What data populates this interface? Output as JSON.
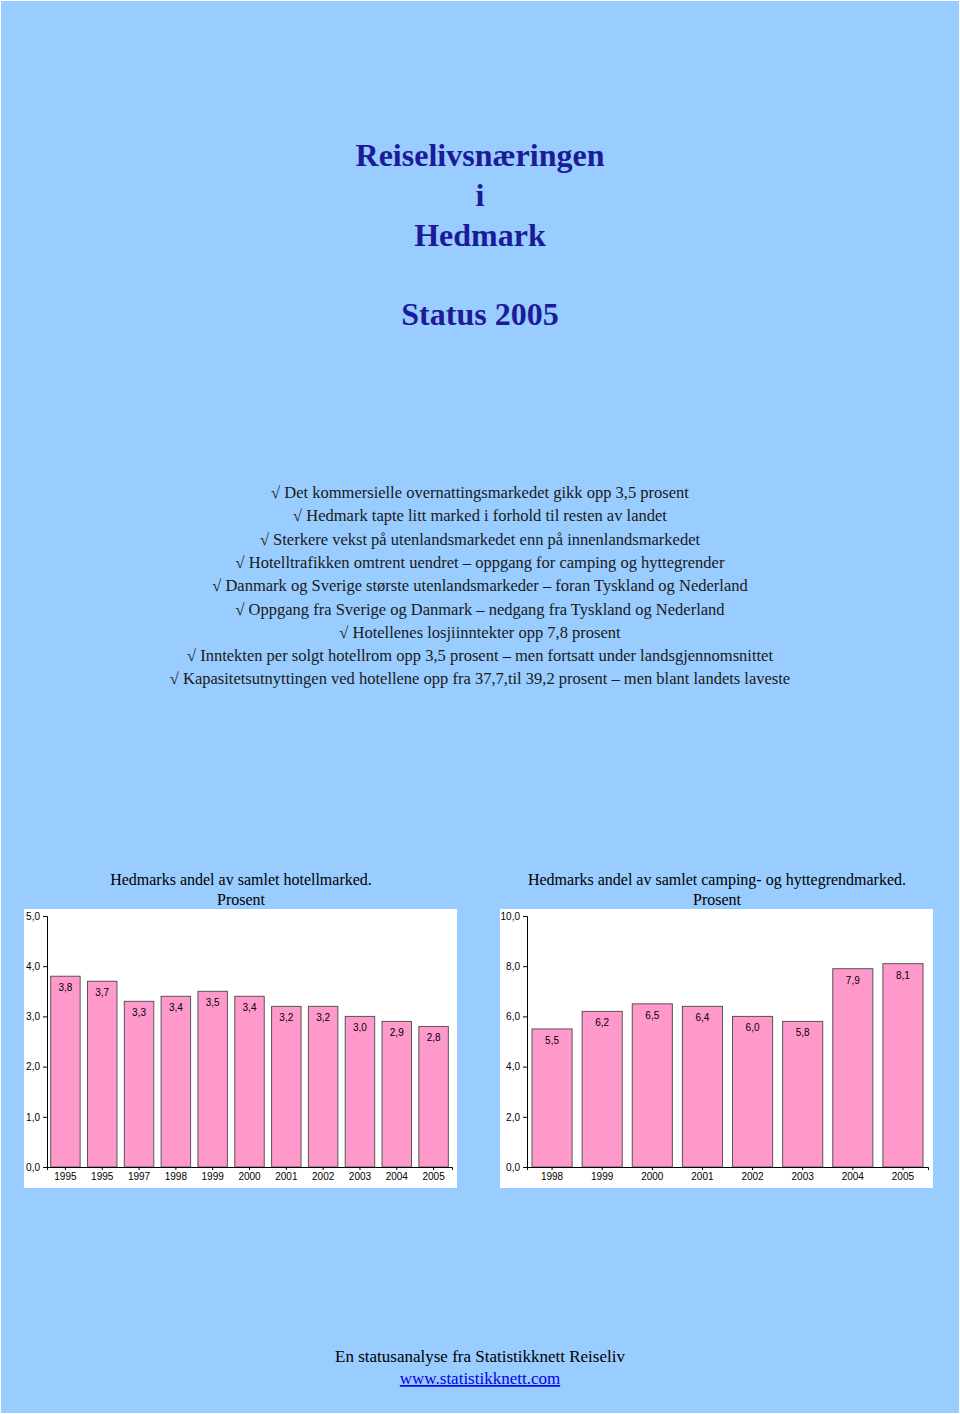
{
  "header": {
    "title_lines": [
      "Reiselivsnæringen",
      "i",
      "Hedmark"
    ],
    "subtitle": "Status 2005"
  },
  "bullets": [
    "√ Det kommersielle overnattingsmarkedet gikk opp 3,5 prosent",
    "√ Hedmark tapte litt marked i forhold til resten av landet",
    "√ Sterkere vekst på utenlandsmarkedet enn på innenlandsmarkedet",
    "√ Hotelltrafikken omtrent uendret – oppgang for camping og hyttegrender",
    "√ Danmark og Sverige største utenlandsmarkeder – foran Tyskland og Nederland",
    "√ Oppgang fra Sverige og Danmark – nedgang fra Tyskland og Nederland",
    "√ Hotellenes losjiinntekter opp 7,8 prosent",
    "√ Inntekten per solgt hotellrom opp 3,5 prosent – men fortsatt under landsgjennomsnittet",
    "√ Kapasitetsutnyttingen ved hotellene opp fra 37,7,til 39,2 prosent – men blant landets laveste"
  ],
  "chart_data": [
    {
      "type": "bar",
      "title": "Hedmarks andel av samlet hotellmarked.",
      "subtitle": "Prosent",
      "categories": [
        "1995",
        "1995",
        "1997",
        "1998",
        "1999",
        "2000",
        "2001",
        "2002",
        "2003",
        "2004",
        "2005"
      ],
      "values": [
        3.8,
        3.7,
        3.3,
        3.4,
        3.5,
        3.4,
        3.2,
        3.2,
        3.0,
        2.9,
        2.8
      ],
      "value_labels": [
        "3,8",
        "3,7",
        "3,3",
        "3,4",
        "3,5",
        "3,4",
        "3,2",
        "3,2",
        "3,0",
        "2,9",
        "2,8"
      ],
      "color": "#FF99CC",
      "ylim": [
        0,
        5
      ],
      "yticks": [
        {
          "value": 0,
          "label": "0,0"
        },
        {
          "value": 1,
          "label": "1,0"
        },
        {
          "value": 2,
          "label": "2,0"
        },
        {
          "value": 3,
          "label": "3,0"
        },
        {
          "value": 4,
          "label": "4,0"
        },
        {
          "value": 5,
          "label": "5,0"
        }
      ],
      "grid": false,
      "data_labels": true
    },
    {
      "type": "bar",
      "title": "Hedmarks andel av samlet camping- og hyttegrendmarked.",
      "subtitle": "Prosent",
      "categories": [
        "1998",
        "1999",
        "2000",
        "2001",
        "2002",
        "2003",
        "2004",
        "2005"
      ],
      "values": [
        5.5,
        6.2,
        6.5,
        6.4,
        6.0,
        5.8,
        7.9,
        8.1
      ],
      "value_labels": [
        "5,5",
        "6,2",
        "6,5",
        "6,4",
        "6,0",
        "5,8",
        "7,9",
        "8,1"
      ],
      "color": "#FF99CC",
      "ylim": [
        0,
        10
      ],
      "yticks": [
        {
          "value": 0,
          "label": "0,0"
        },
        {
          "value": 2,
          "label": "2,0"
        },
        {
          "value": 4,
          "label": "4,0"
        },
        {
          "value": 6,
          "label": "6,0"
        },
        {
          "value": 8,
          "label": "8,0"
        },
        {
          "value": 10,
          "label": "10,0"
        }
      ],
      "grid": false,
      "data_labels": true
    }
  ],
  "footer": {
    "text": "En statusanalyse fra Statistikknett Reiseliv",
    "link": "www.statistikknett.com"
  }
}
